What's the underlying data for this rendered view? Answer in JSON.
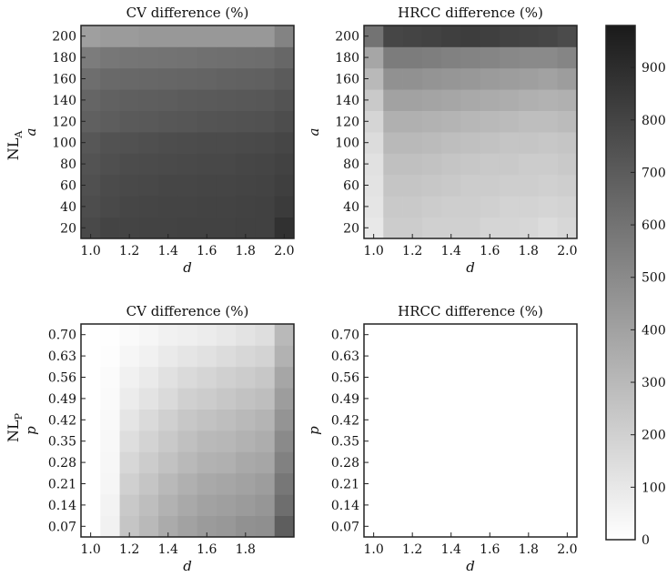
{
  "chart_data": [
    {
      "type": "heatmap",
      "title": "CV difference (%)",
      "row_label": "NL",
      "row_label_sub": "A",
      "xlabel": "d",
      "ylabel": "a",
      "x": [
        1.0,
        1.1,
        1.2,
        1.3,
        1.4,
        1.5,
        1.6,
        1.7,
        1.8,
        1.9,
        2.0
      ],
      "y": [
        20,
        40,
        60,
        80,
        100,
        120,
        140,
        160,
        180,
        200
      ],
      "x_ticks": [
        "1.0",
        "1.2",
        "1.4",
        "1.6",
        "1.8",
        "2.0"
      ],
      "y_ticks": [
        "20",
        "40",
        "60",
        "80",
        "100",
        "120",
        "140",
        "160",
        "180",
        "200"
      ],
      "z": [
        [
          780,
          800,
          800,
          805,
          805,
          810,
          810,
          810,
          815,
          815,
          880
        ],
        [
          760,
          780,
          790,
          795,
          800,
          800,
          805,
          805,
          810,
          815,
          840
        ],
        [
          750,
          770,
          780,
          785,
          790,
          790,
          795,
          795,
          800,
          805,
          820
        ],
        [
          735,
          755,
          765,
          770,
          775,
          780,
          785,
          785,
          790,
          795,
          810
        ],
        [
          720,
          740,
          745,
          755,
          760,
          765,
          770,
          770,
          775,
          780,
          790
        ],
        [
          680,
          695,
          705,
          710,
          720,
          725,
          730,
          735,
          740,
          745,
          760
        ],
        [
          660,
          675,
          685,
          690,
          695,
          700,
          705,
          710,
          715,
          720,
          735
        ],
        [
          620,
          640,
          645,
          650,
          655,
          660,
          665,
          670,
          675,
          680,
          700
        ],
        [
          560,
          580,
          590,
          595,
          600,
          605,
          610,
          615,
          620,
          625,
          650
        ],
        [
          410,
          430,
          430,
          440,
          440,
          440,
          440,
          440,
          440,
          440,
          530
        ]
      ]
    },
    {
      "type": "heatmap",
      "title": "HRCC difference (%)",
      "xlabel": "d",
      "ylabel": "a",
      "x": [
        1.0,
        1.1,
        1.2,
        1.3,
        1.4,
        1.5,
        1.6,
        1.7,
        1.8,
        1.9,
        2.0
      ],
      "y": [
        20,
        40,
        60,
        80,
        100,
        120,
        140,
        160,
        180,
        200
      ],
      "x_ticks": [
        "1.0",
        "1.2",
        "1.4",
        "1.6",
        "1.8",
        "2.0"
      ],
      "y_ticks": [
        "20",
        "40",
        "60",
        "80",
        "100",
        "120",
        "140",
        "160",
        "180",
        "200"
      ],
      "z": [
        [
          100,
          220,
          220,
          200,
          200,
          200,
          180,
          180,
          170,
          150,
          170
        ],
        [
          110,
          230,
          230,
          220,
          210,
          210,
          200,
          190,
          190,
          180,
          190
        ],
        [
          120,
          250,
          250,
          240,
          230,
          220,
          220,
          210,
          210,
          200,
          210
        ],
        [
          130,
          270,
          270,
          260,
          250,
          240,
          230,
          230,
          220,
          220,
          230
        ],
        [
          150,
          300,
          300,
          290,
          280,
          270,
          260,
          250,
          250,
          240,
          250
        ],
        [
          180,
          340,
          340,
          330,
          320,
          310,
          300,
          290,
          280,
          280,
          290
        ],
        [
          230,
          400,
          400,
          390,
          380,
          370,
          360,
          350,
          340,
          330,
          340
        ],
        [
          300,
          470,
          470,
          460,
          450,
          440,
          430,
          420,
          410,
          400,
          420
        ],
        [
          380,
          560,
          560,
          550,
          540,
          530,
          520,
          510,
          500,
          500,
          520
        ],
        [
          600,
          790,
          800,
          810,
          820,
          830,
          820,
          810,
          800,
          790,
          770
        ]
      ]
    },
    {
      "type": "heatmap",
      "title": "CV difference (%)",
      "row_label": "NL",
      "row_label_sub": "P",
      "xlabel": "d",
      "ylabel": "p",
      "x": [
        1.0,
        1.1,
        1.2,
        1.3,
        1.4,
        1.5,
        1.6,
        1.7,
        1.8,
        1.9,
        2.0
      ],
      "y": [
        0.07,
        0.14,
        0.21,
        0.28,
        0.35,
        0.42,
        0.49,
        0.56,
        0.63,
        0.7
      ],
      "x_ticks": [
        "1.0",
        "1.2",
        "1.4",
        "1.6",
        "1.8"
      ],
      "y_ticks": [
        "0.07",
        "0.14",
        "0.21",
        "0.28",
        "0.35",
        "0.42",
        "0.49",
        "0.56",
        "0.63",
        "0.70"
      ],
      "z": [
        [
          0,
          60,
          250,
          300,
          360,
          400,
          430,
          440,
          470,
          480,
          690
        ],
        [
          0,
          50,
          230,
          280,
          330,
          370,
          400,
          410,
          430,
          450,
          620
        ],
        [
          0,
          40,
          200,
          250,
          300,
          340,
          370,
          380,
          400,
          420,
          580
        ],
        [
          0,
          35,
          170,
          220,
          260,
          300,
          330,
          340,
          370,
          380,
          540
        ],
        [
          0,
          30,
          140,
          190,
          230,
          270,
          300,
          310,
          330,
          350,
          500
        ],
        [
          0,
          25,
          110,
          160,
          200,
          240,
          260,
          280,
          300,
          320,
          460
        ],
        [
          0,
          20,
          80,
          120,
          160,
          200,
          220,
          240,
          260,
          280,
          420
        ],
        [
          0,
          15,
          60,
          90,
          130,
          160,
          180,
          200,
          220,
          240,
          380
        ],
        [
          0,
          10,
          40,
          60,
          90,
          110,
          130,
          150,
          170,
          190,
          330
        ],
        [
          0,
          5,
          20,
          40,
          60,
          70,
          80,
          100,
          120,
          140,
          300
        ]
      ]
    },
    {
      "type": "heatmap",
      "title": "HRCC difference (%)",
      "xlabel": "d",
      "ylabel": "p",
      "x": [
        1.0,
        1.1,
        1.2,
        1.3,
        1.4,
        1.5,
        1.6,
        1.7,
        1.8,
        1.9,
        2.0
      ],
      "y": [
        0.07,
        0.14,
        0.21,
        0.28,
        0.35,
        0.42,
        0.49,
        0.56,
        0.63,
        0.7
      ],
      "x_ticks": [
        "1.0",
        "1.2",
        "1.4",
        "1.6",
        "1.8",
        "2.0"
      ],
      "y_ticks": [
        "0.07",
        "0.14",
        "0.21",
        "0.28",
        "0.35",
        "0.42",
        "0.49",
        "0.56",
        "0.63",
        "0.70"
      ],
      "z": [
        [
          0,
          0,
          0,
          0,
          0,
          0,
          0,
          0,
          0,
          0,
          0
        ],
        [
          0,
          0,
          0,
          0,
          0,
          0,
          0,
          0,
          0,
          0,
          0
        ],
        [
          0,
          0,
          0,
          0,
          0,
          0,
          0,
          0,
          0,
          0,
          0
        ],
        [
          0,
          0,
          0,
          0,
          0,
          0,
          0,
          0,
          0,
          0,
          0
        ],
        [
          0,
          0,
          0,
          0,
          0,
          0,
          0,
          0,
          0,
          0,
          0
        ],
        [
          0,
          0,
          0,
          0,
          0,
          0,
          0,
          0,
          0,
          0,
          0
        ],
        [
          0,
          0,
          0,
          0,
          0,
          0,
          0,
          0,
          0,
          0,
          0
        ],
        [
          0,
          0,
          0,
          0,
          0,
          0,
          0,
          0,
          0,
          0,
          0
        ],
        [
          0,
          0,
          0,
          0,
          0,
          0,
          0,
          0,
          0,
          0,
          0
        ],
        [
          0,
          0,
          0,
          0,
          0,
          0,
          0,
          0,
          0,
          0,
          0
        ]
      ]
    }
  ],
  "colorbar": {
    "min": 0,
    "max": 980,
    "ticks": [
      "0",
      "100",
      "200",
      "300",
      "400",
      "500",
      "600",
      "700",
      "800",
      "900"
    ],
    "color_low": "#ffffff",
    "color_high": "#1a1a1a"
  }
}
